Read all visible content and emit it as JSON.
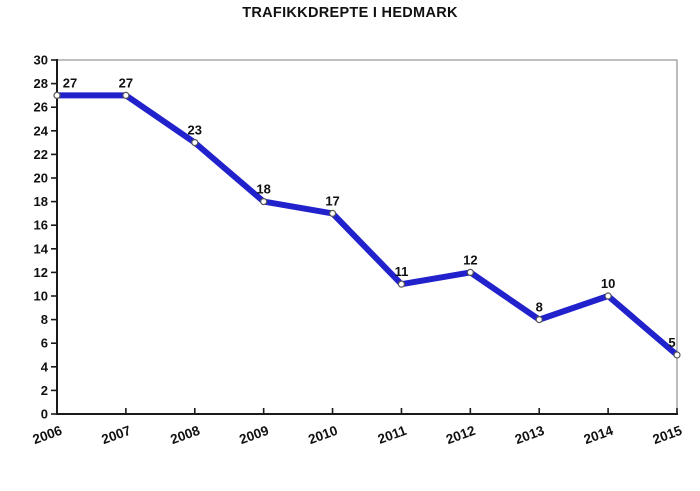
{
  "chart_data": {
    "type": "line",
    "title": "TRAFIKKDREPTE I HEDMARK",
    "categories": [
      "2006",
      "2007",
      "2008",
      "2009",
      "2010",
      "2011",
      "2012",
      "2013",
      "2014",
      "2015"
    ],
    "values": [
      27,
      27,
      23,
      18,
      17,
      11,
      12,
      8,
      10,
      5
    ],
    "xlabel": "",
    "ylabel": "",
    "ylim": [
      0,
      30
    ],
    "ytick_step": 2,
    "grid": false,
    "legend_position": "none",
    "data_labels": true,
    "x_label_rotation_deg": -20,
    "colors": {
      "line": "#2222CC",
      "marker_fill": "#FFFFFF",
      "marker_stroke": "#555555",
      "axis": "#1A1A1A",
      "frame": "#999999",
      "text": "#111111"
    }
  }
}
